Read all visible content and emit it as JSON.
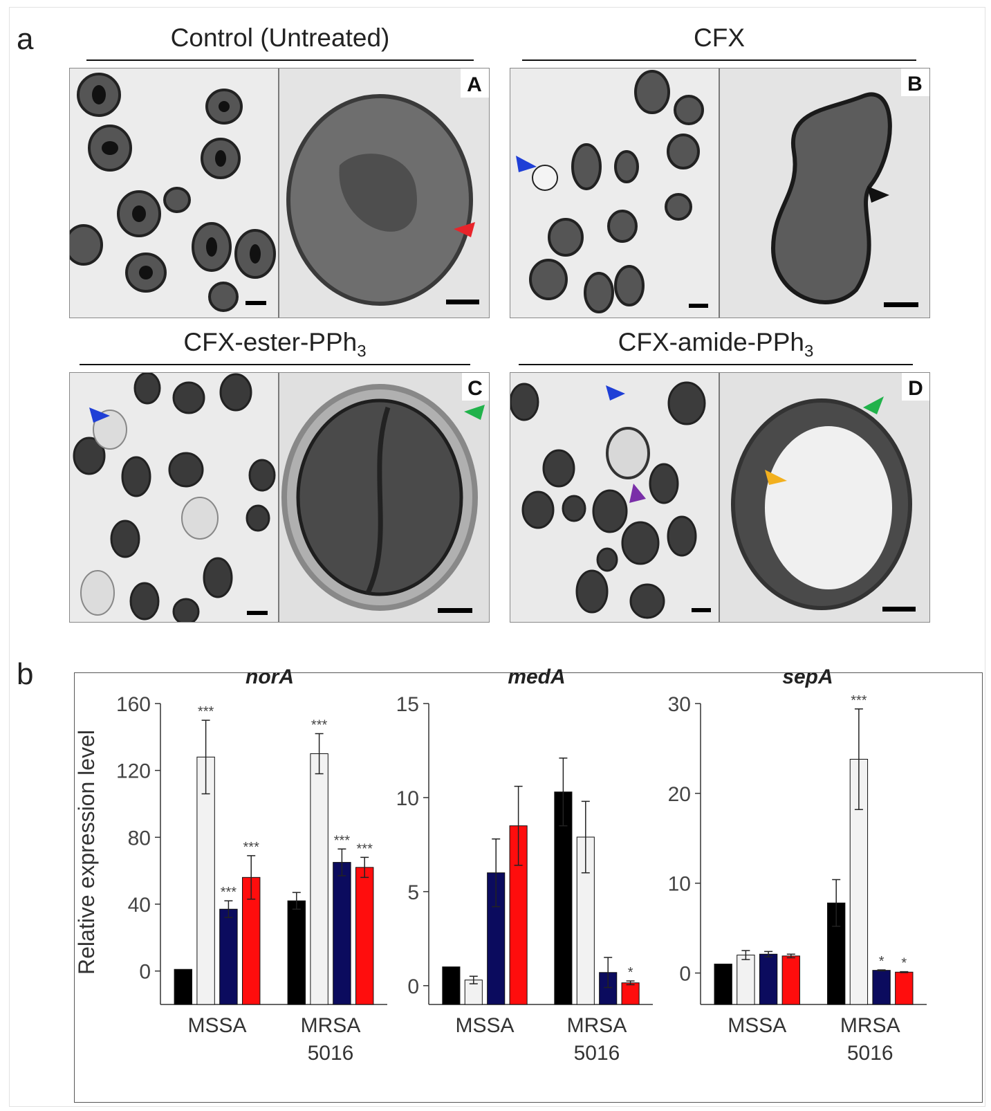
{
  "panel_a": {
    "letter": "a",
    "groups": [
      {
        "title": "Control (Untreated)",
        "letter": "A"
      },
      {
        "title": "CFX",
        "letter": "B"
      },
      {
        "title_main": "CFX-ester-PPh",
        "title_sub": "3",
        "letter": "C"
      },
      {
        "title_main": "CFX-amide-PPh",
        "title_sub": "3",
        "letter": "D"
      }
    ],
    "arrow_colors": {
      "red": "#e8242a",
      "black": "#111111",
      "blue": "#1f3fd6",
      "green": "#21b24b",
      "purple": "#7a2fa8",
      "yellow": "#f2b01e"
    }
  },
  "panel_b": {
    "letter": "b",
    "ylabel": "Relative expression level",
    "bar_colors": [
      "#000000",
      "#f2f2f2",
      "#0b0b5e",
      "#ff0d0d"
    ]
  },
  "chart_data": [
    {
      "type": "bar",
      "title": "norA",
      "ylabel": "Relative expression level",
      "categories": [
        "MSSA",
        "MRSA 5016"
      ],
      "ylim": [
        -20,
        160
      ],
      "yticks": [
        0,
        40,
        80,
        120,
        160
      ],
      "series": [
        {
          "values": [
            1,
            42
          ],
          "errors": [
            0,
            5
          ],
          "sig": [
            "",
            ""
          ]
        },
        {
          "values": [
            128,
            130
          ],
          "errors": [
            22,
            12
          ],
          "sig": [
            "***",
            "***"
          ]
        },
        {
          "values": [
            37,
            65
          ],
          "errors": [
            5,
            8
          ],
          "sig": [
            "***",
            "***"
          ]
        },
        {
          "values": [
            56,
            62
          ],
          "errors": [
            13,
            6
          ],
          "sig": [
            "***",
            "***"
          ]
        }
      ]
    },
    {
      "type": "bar",
      "title": "medA",
      "categories": [
        "MSSA",
        "MRSA 5016"
      ],
      "ylim": [
        -1,
        15
      ],
      "yticks": [
        0,
        5,
        10,
        15
      ],
      "series": [
        {
          "values": [
            1,
            10.3
          ],
          "errors": [
            0,
            1.8
          ],
          "sig": [
            "",
            ""
          ]
        },
        {
          "values": [
            0.3,
            7.9
          ],
          "errors": [
            0.2,
            1.9
          ],
          "sig": [
            "",
            ""
          ]
        },
        {
          "values": [
            6.0,
            0.7
          ],
          "errors": [
            1.8,
            0.8
          ],
          "sig": [
            "",
            ""
          ]
        },
        {
          "values": [
            8.5,
            0.15
          ],
          "errors": [
            2.1,
            0.1
          ],
          "sig": [
            "",
            "*"
          ]
        }
      ]
    },
    {
      "type": "bar",
      "title": "sepA",
      "categories": [
        "MSSA",
        "MRSA 5016"
      ],
      "ylim": [
        -3.5,
        30
      ],
      "yticks": [
        0,
        10,
        20,
        30
      ],
      "series": [
        {
          "values": [
            1,
            7.8
          ],
          "errors": [
            0,
            2.6
          ],
          "sig": [
            "",
            ""
          ]
        },
        {
          "values": [
            2.0,
            23.8
          ],
          "errors": [
            0.5,
            5.6
          ],
          "sig": [
            "",
            "***"
          ]
        },
        {
          "values": [
            2.1,
            0.3
          ],
          "errors": [
            0.3,
            0.05
          ],
          "sig": [
            "",
            "*"
          ]
        },
        {
          "values": [
            1.9,
            0.1
          ],
          "errors": [
            0.2,
            0.05
          ],
          "sig": [
            "",
            "*"
          ]
        }
      ]
    }
  ]
}
